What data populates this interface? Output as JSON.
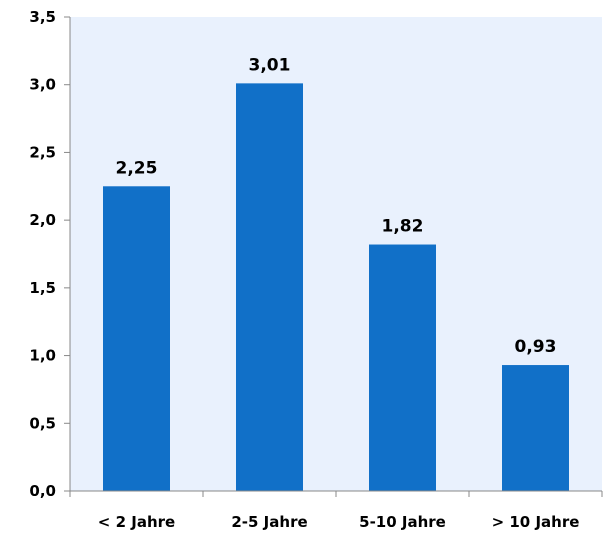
{
  "chart_data": {
    "type": "bar",
    "categories": [
      "< 2 Jahre",
      "2-5 Jahre",
      "5-10 Jahre",
      "> 10 Jahre"
    ],
    "values": [
      2.25,
      3.01,
      1.82,
      0.93
    ],
    "data_labels": [
      "2,25",
      "3,01",
      "1,82",
      "0,93"
    ],
    "title": "",
    "xlabel": "",
    "ylabel": "",
    "ylim": [
      0,
      3.5
    ],
    "yticks": [
      0,
      0.5,
      1.0,
      1.5,
      2.0,
      2.5,
      3.0,
      3.5
    ],
    "ytick_labels": [
      "0,0",
      "0,5",
      "1,0",
      "1,5",
      "2,0",
      "2,5",
      "3,0",
      "3,5"
    ],
    "grid": false,
    "legend": "none",
    "colors": {
      "bar": "#1170c8",
      "plot_background": "#e9f1fd",
      "axis": "#888888"
    }
  }
}
